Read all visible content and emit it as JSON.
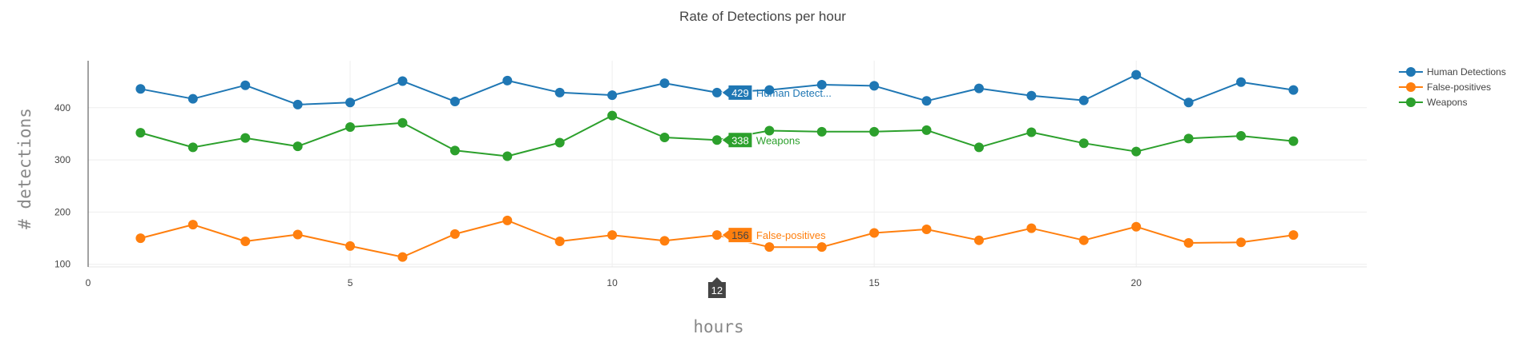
{
  "chart_data": {
    "type": "line",
    "title": "Rate of Detections per hour",
    "xlabel": "hours",
    "ylabel": "# detections",
    "xlim": [
      0,
      24.4
    ],
    "ylim": [
      95,
      490
    ],
    "xticks": [
      0,
      5,
      10,
      15,
      20
    ],
    "yticks": [
      100,
      200,
      300,
      400
    ],
    "grid": true,
    "legend_position": "top-right",
    "x": [
      1,
      2,
      3,
      4,
      5,
      6,
      7,
      8,
      9,
      10,
      11,
      12,
      13,
      14,
      15,
      16,
      17,
      18,
      19,
      20,
      21,
      22,
      23
    ],
    "series": [
      {
        "name": "Human Detections",
        "color": "#1f77b4",
        "values": [
          436,
          417,
          443,
          406,
          410,
          451,
          412,
          452,
          429,
          424,
          447,
          429,
          434,
          444,
          442,
          413,
          437,
          423,
          414,
          463,
          410,
          449,
          434
        ]
      },
      {
        "name": "False-positives",
        "color": "#ff7f0e",
        "values": [
          150,
          176,
          144,
          157,
          135,
          114,
          158,
          184,
          144,
          156,
          145,
          156,
          133,
          133,
          160,
          167,
          146,
          169,
          146,
          172,
          141,
          142,
          156
        ]
      },
      {
        "name": "Weapons",
        "color": "#2ca02c",
        "values": [
          352,
          324,
          342,
          326,
          363,
          371,
          318,
          307,
          333,
          385,
          343,
          338,
          356,
          354,
          354,
          357,
          324,
          353,
          332,
          316,
          341,
          346,
          336
        ]
      }
    ],
    "hover": {
      "x": 12,
      "x_label": "12",
      "labels": [
        {
          "value": "429",
          "name": "Human Detect..."
        },
        {
          "value": "156",
          "name": "False-positives"
        },
        {
          "value": "338",
          "name": "Weapons"
        }
      ]
    }
  }
}
